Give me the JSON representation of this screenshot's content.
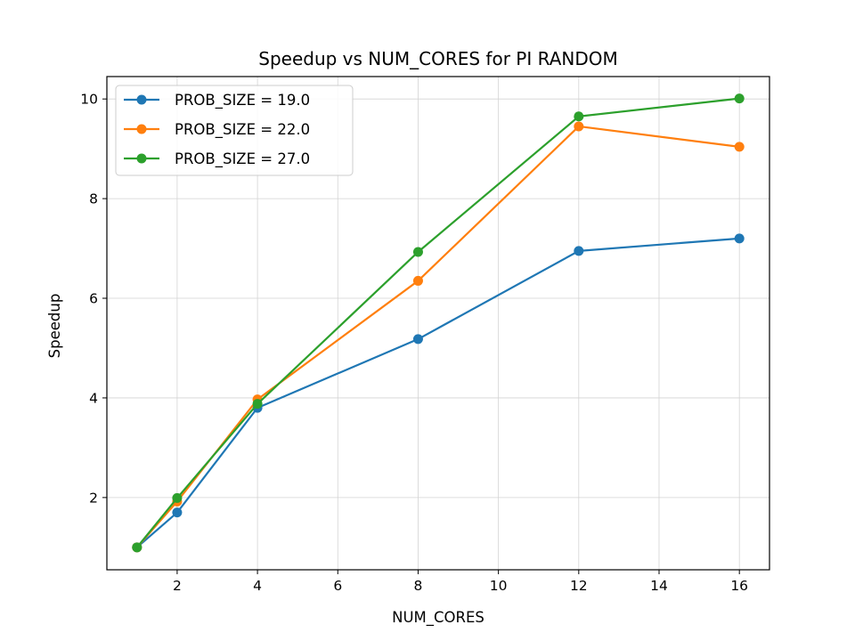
{
  "chart_data": {
    "type": "line",
    "title": "Speedup vs NUM_CORES for PI RANDOM",
    "xlabel": "NUM_CORES",
    "ylabel": "Speedup",
    "x": [
      1,
      2,
      4,
      8,
      12,
      16
    ],
    "xlim": [
      0.25,
      16.75
    ],
    "ylim": [
      0.55,
      10.45
    ],
    "xticks": [
      2,
      4,
      6,
      8,
      10,
      12,
      14,
      16
    ],
    "yticks": [
      2,
      4,
      6,
      8,
      10
    ],
    "grid": true,
    "legend_position": "top-left",
    "series": [
      {
        "name": "PROB_SIZE = 19.0",
        "color": "#1f77b4",
        "values": [
          1.0,
          1.7,
          3.8,
          5.18,
          6.95,
          7.2
        ]
      },
      {
        "name": "PROB_SIZE = 22.0",
        "color": "#ff7f0e",
        "values": [
          1.0,
          1.92,
          3.97,
          6.35,
          9.45,
          9.04
        ]
      },
      {
        "name": "PROB_SIZE = 27.0",
        "color": "#2ca02c",
        "values": [
          1.0,
          1.99,
          3.88,
          6.93,
          9.65,
          10.01
        ]
      }
    ]
  }
}
